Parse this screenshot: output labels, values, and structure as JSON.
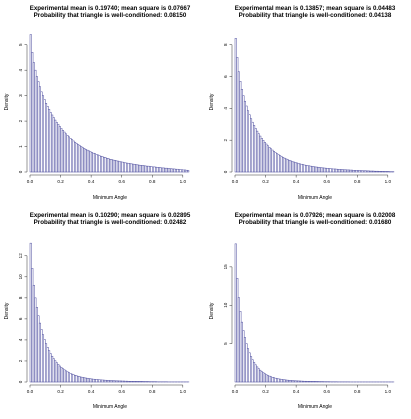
{
  "colors": {
    "bar_stroke": "#4b4b9e",
    "bar_fill": "#ffffff",
    "axis": "#333333"
  },
  "chart_data": [
    {
      "type": "bar",
      "title": [
        "Experimental mean is 0.19740; mean square is 0.07667",
        "Probability that triangle is well-conditioned: 0.08150"
      ],
      "xlabel": "Minimum Angle",
      "ylabel": "Density",
      "xlim": [
        0,
        1.047
      ],
      "ylim": [
        0,
        5.5
      ],
      "xticks": [
        "0.0",
        "0.2",
        "0.4",
        "0.6",
        "0.8",
        "1.0"
      ],
      "yticks": [
        "0",
        "1",
        "2",
        "3",
        "4",
        "5"
      ],
      "bin_width": 0.01,
      "values": [
        5.4,
        4.7,
        4.3,
        4.0,
        3.75,
        3.55,
        3.35,
        3.15,
        3.0,
        2.85,
        2.7,
        2.58,
        2.46,
        2.34,
        2.24,
        2.14,
        2.04,
        1.95,
        1.87,
        1.79,
        1.71,
        1.64,
        1.57,
        1.5,
        1.44,
        1.38,
        1.32,
        1.27,
        1.22,
        1.17,
        1.12,
        1.08,
        1.04,
        1.0,
        0.96,
        0.93,
        0.89,
        0.86,
        0.83,
        0.8,
        0.77,
        0.74,
        0.72,
        0.69,
        0.67,
        0.64,
        0.62,
        0.6,
        0.58,
        0.56,
        0.54,
        0.52,
        0.5,
        0.49,
        0.47,
        0.46,
        0.44,
        0.43,
        0.41,
        0.4,
        0.39,
        0.37,
        0.36,
        0.35,
        0.34,
        0.33,
        0.32,
        0.31,
        0.3,
        0.29,
        0.28,
        0.27,
        0.26,
        0.26,
        0.25,
        0.24,
        0.23,
        0.23,
        0.22,
        0.21,
        0.2,
        0.2,
        0.19,
        0.18,
        0.18,
        0.17,
        0.16,
        0.16,
        0.15,
        0.15,
        0.14,
        0.13,
        0.13,
        0.12,
        0.12,
        0.11,
        0.11,
        0.1,
        0.09,
        0.09,
        0.08,
        0.08,
        0.07,
        0.06
      ]
    },
    {
      "type": "bar",
      "title": [
        "Experimental mean is 0.13857; mean square is 0.04483",
        "Probability that triangle is well-conditioned: 0.04138"
      ],
      "xlabel": "Minimum Angle",
      "ylabel": "Density",
      "xlim": [
        0,
        1.047
      ],
      "ylim": [
        0,
        8.8
      ],
      "xticks": [
        "0.0",
        "0.2",
        "0.4",
        "0.6",
        "0.8",
        "1.0"
      ],
      "yticks": [
        "0",
        "2",
        "4",
        "6",
        "8"
      ],
      "bin_width": 0.01,
      "values": [
        8.4,
        7.2,
        6.3,
        5.7,
        5.2,
        4.8,
        4.45,
        4.15,
        3.85,
        3.6,
        3.35,
        3.13,
        2.93,
        2.74,
        2.57,
        2.41,
        2.26,
        2.12,
        1.99,
        1.87,
        1.76,
        1.65,
        1.55,
        1.46,
        1.38,
        1.3,
        1.22,
        1.15,
        1.09,
        1.03,
        0.97,
        0.92,
        0.87,
        0.82,
        0.78,
        0.74,
        0.7,
        0.66,
        0.63,
        0.6,
        0.57,
        0.54,
        0.51,
        0.49,
        0.47,
        0.44,
        0.42,
        0.4,
        0.39,
        0.37,
        0.35,
        0.34,
        0.32,
        0.31,
        0.3,
        0.28,
        0.27,
        0.26,
        0.25,
        0.24,
        0.23,
        0.22,
        0.21,
        0.2,
        0.19,
        0.19,
        0.18,
        0.17,
        0.16,
        0.16,
        0.15,
        0.14,
        0.14,
        0.13,
        0.13,
        0.12,
        0.12,
        0.11,
        0.11,
        0.1,
        0.1,
        0.09,
        0.09,
        0.08,
        0.08,
        0.08,
        0.07,
        0.07,
        0.06,
        0.06,
        0.06,
        0.05,
        0.05,
        0.05,
        0.04,
        0.04,
        0.04,
        0.03,
        0.03,
        0.03,
        0.03,
        0.02,
        0.02,
        0.02
      ]
    },
    {
      "type": "bar",
      "title": [
        "Experimental mean is 0.10290; mean square is 0.02895",
        "Probability that triangle is well-conditioned: 0.02482"
      ],
      "xlabel": "Minimum Angle",
      "ylabel": "Density",
      "xlim": [
        0,
        1.047
      ],
      "ylim": [
        0,
        13.5
      ],
      "xticks": [
        "0.0",
        "0.2",
        "0.4",
        "0.6",
        "0.8",
        "1.0"
      ],
      "yticks": [
        "0",
        "2",
        "4",
        "6",
        "8",
        "10",
        "12"
      ],
      "bin_width": 0.01,
      "values": [
        13.2,
        10.8,
        9.2,
        8.0,
        7.1,
        6.3,
        5.6,
        5.0,
        4.5,
        4.05,
        3.65,
        3.3,
        2.98,
        2.7,
        2.45,
        2.22,
        2.02,
        1.84,
        1.67,
        1.52,
        1.39,
        1.27,
        1.16,
        1.06,
        0.97,
        0.89,
        0.82,
        0.75,
        0.69,
        0.64,
        0.59,
        0.55,
        0.51,
        0.47,
        0.44,
        0.41,
        0.38,
        0.36,
        0.33,
        0.31,
        0.29,
        0.27,
        0.26,
        0.24,
        0.23,
        0.21,
        0.2,
        0.19,
        0.18,
        0.17,
        0.16,
        0.15,
        0.14,
        0.13,
        0.13,
        0.12,
        0.11,
        0.11,
        0.1,
        0.1,
        0.09,
        0.09,
        0.08,
        0.08,
        0.07,
        0.07,
        0.07,
        0.06,
        0.06,
        0.06,
        0.05,
        0.05,
        0.05,
        0.05,
        0.04,
        0.04,
        0.04,
        0.04,
        0.03,
        0.03,
        0.03,
        0.03,
        0.03,
        0.02,
        0.02,
        0.02,
        0.02,
        0.02,
        0.02,
        0.02,
        0.01,
        0.01,
        0.01,
        0.01,
        0.01,
        0.01,
        0.01,
        0.01,
        0.01,
        0.01,
        0.01,
        0.01,
        0.01,
        0.01
      ]
    },
    {
      "type": "bar",
      "title": [
        "Experimental mean is 0.07926; mean square is 0.02008",
        "Probability that triangle is well-conditioned: 0.01680"
      ],
      "xlabel": "Minimum Angle",
      "ylabel": "Density",
      "xlim": [
        0,
        1.047
      ],
      "ylim": [
        0,
        18.5
      ],
      "xticks": [
        "0.0",
        "0.2",
        "0.4",
        "0.6",
        "0.8",
        "1.0"
      ],
      "yticks": [
        "5",
        "10",
        "15"
      ],
      "bin_width": 0.01,
      "values": [
        18.0,
        13.5,
        11.0,
        9.2,
        7.8,
        6.7,
        5.8,
        5.0,
        4.35,
        3.8,
        3.32,
        2.9,
        2.55,
        2.24,
        1.97,
        1.74,
        1.54,
        1.36,
        1.21,
        1.08,
        0.96,
        0.86,
        0.77,
        0.69,
        0.62,
        0.56,
        0.5,
        0.46,
        0.41,
        0.38,
        0.34,
        0.31,
        0.29,
        0.26,
        0.24,
        0.22,
        0.2,
        0.19,
        0.17,
        0.16,
        0.15,
        0.14,
        0.13,
        0.12,
        0.11,
        0.1,
        0.1,
        0.09,
        0.09,
        0.08,
        0.07,
        0.07,
        0.07,
        0.06,
        0.06,
        0.05,
        0.05,
        0.05,
        0.04,
        0.04,
        0.04,
        0.04,
        0.03,
        0.03,
        0.03,
        0.03,
        0.03,
        0.02,
        0.02,
        0.02,
        0.02,
        0.02,
        0.02,
        0.02,
        0.02,
        0.01,
        0.01,
        0.01,
        0.01,
        0.01,
        0.01,
        0.01,
        0.01,
        0.01,
        0.01,
        0.01,
        0.01,
        0.01,
        0.01,
        0.01,
        0.01,
        0.01,
        0.01,
        0.01,
        0.01,
        0.01,
        0.01,
        0.01,
        0.01,
        0.01,
        0.01,
        0.01,
        0.01,
        0.01
      ]
    }
  ]
}
